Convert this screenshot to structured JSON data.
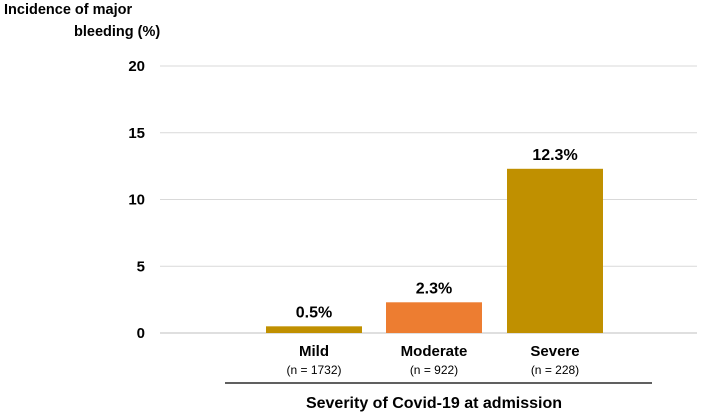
{
  "chart_data": {
    "type": "bar",
    "ylabel_lines": [
      "Incidence of major",
      "bleeding (%)"
    ],
    "xlabel": "Severity of Covid-19 at admission",
    "ylim": [
      0,
      20
    ],
    "yticks": [
      0,
      5,
      10,
      15,
      20
    ],
    "grid": true,
    "categories": [
      "Mild",
      "Moderate",
      "Severe"
    ],
    "category_notes": [
      "(n = 1732)",
      "(n = 922)",
      "(n = 228)"
    ],
    "values": [
      0.5,
      2.3,
      12.3
    ],
    "data_labels": [
      "0.5%",
      "2.3%",
      "12.3%"
    ],
    "colors": [
      "#C09000",
      "#ED7D31",
      "#C09000"
    ]
  }
}
